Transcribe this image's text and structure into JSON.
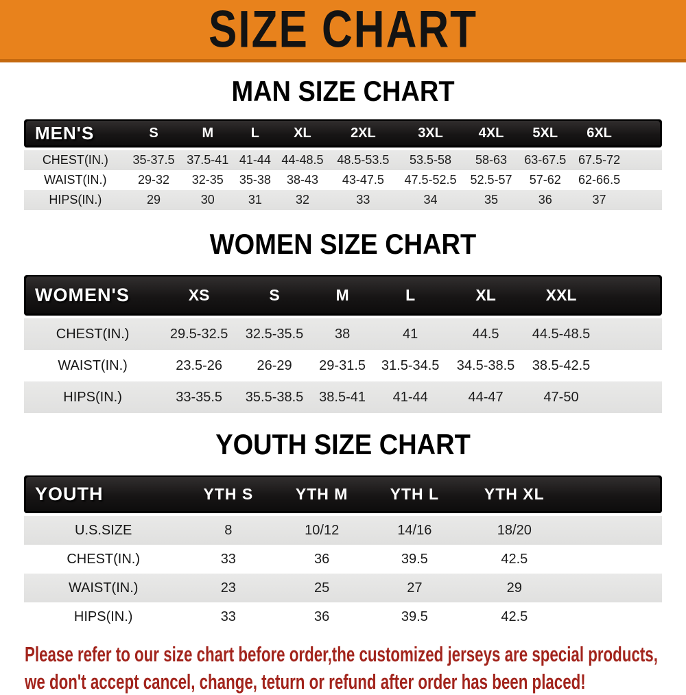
{
  "banner": {
    "title": "SIZE CHART",
    "bg_color": "#E8821C",
    "border_color": "#C4690F"
  },
  "colors": {
    "bar_black": "#171515",
    "stripe_gray": "#E3E3E2",
    "footer_red": "#A2241C"
  },
  "men": {
    "heading": "MAN SIZE CHART",
    "header": {
      "label": "MEN'S",
      "sizes": [
        "S",
        "M",
        "L",
        "XL",
        "2XL",
        "3XL",
        "4XL",
        "5XL",
        "6XL"
      ]
    },
    "rows": [
      {
        "label": "CHEST(IN.)",
        "values": [
          "35-37.5",
          "37.5-41",
          "41-44",
          "44-48.5",
          "48.5-53.5",
          "53.5-58",
          "58-63",
          "63-67.5",
          "67.5-72"
        ]
      },
      {
        "label": "WAIST(IN.)",
        "values": [
          "29-32",
          "32-35",
          "35-38",
          "38-43",
          "43-47.5",
          "47.5-52.5",
          "52.5-57",
          "57-62",
          "62-66.5"
        ]
      },
      {
        "label": "HIPS(IN.)",
        "values": [
          "29",
          "30",
          "31",
          "32",
          "33",
          "34",
          "35",
          "36",
          "37"
        ]
      }
    ]
  },
  "women": {
    "heading": "WOMEN SIZE CHART",
    "header": {
      "label": "WOMEN'S",
      "sizes": [
        "XS",
        "S",
        "M",
        "L",
        "XL",
        "XXL"
      ]
    },
    "rows": [
      {
        "label": "CHEST(IN.)",
        "values": [
          "29.5-32.5",
          "32.5-35.5",
          "38",
          "41",
          "44.5",
          "44.5-48.5"
        ]
      },
      {
        "label": "WAIST(IN.)",
        "values": [
          "23.5-26",
          "26-29",
          "29-31.5",
          "31.5-34.5",
          "34.5-38.5",
          "38.5-42.5"
        ]
      },
      {
        "label": "HIPS(IN.)",
        "values": [
          "33-35.5",
          "35.5-38.5",
          "38.5-41",
          "41-44",
          "44-47",
          "47-50"
        ]
      }
    ]
  },
  "youth": {
    "heading": "YOUTH SIZE CHART",
    "header": {
      "label": "YOUTH",
      "sizes": [
        "YTH S",
        "YTH M",
        "YTH L",
        "YTH XL"
      ]
    },
    "rows": [
      {
        "label": "U.S.SIZE",
        "values": [
          "8",
          "10/12",
          "14/16",
          "18/20"
        ]
      },
      {
        "label": "CHEST(IN.)",
        "values": [
          "33",
          "36",
          "39.5",
          "42.5"
        ]
      },
      {
        "label": "WAIST(IN.)",
        "values": [
          "23",
          "25",
          "27",
          "29"
        ]
      },
      {
        "label": "HIPS(IN.)",
        "values": [
          "33",
          "36",
          "39.5",
          "42.5"
        ]
      }
    ]
  },
  "footer": {
    "line1": "Please refer to our size chart before order,the customized jerseys are special products,",
    "line2": "we don't accept cancel, change, teturn or refund after order has been placed!"
  }
}
